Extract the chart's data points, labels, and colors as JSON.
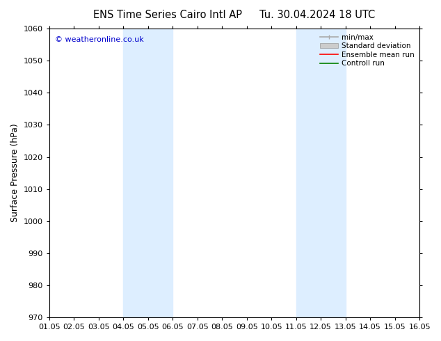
{
  "title_left": "ENS Time Series Cairo Intl AP",
  "title_right": "Tu. 30.04.2024 18 UTC",
  "ylabel": "Surface Pressure (hPa)",
  "xlabel": "",
  "ylim": [
    970,
    1060
  ],
  "yticks": [
    970,
    980,
    990,
    1000,
    1010,
    1020,
    1030,
    1040,
    1050,
    1060
  ],
  "xlim_start": 0,
  "xlim_end": 15,
  "xtick_labels": [
    "01.05",
    "02.05",
    "03.05",
    "04.05",
    "05.05",
    "06.05",
    "07.05",
    "08.05",
    "09.05",
    "10.05",
    "11.05",
    "12.05",
    "13.05",
    "14.05",
    "15.05",
    "16.05"
  ],
  "shaded_regions": [
    {
      "xmin": 3.0,
      "xmax": 5.0,
      "color": "#ddeeff"
    },
    {
      "xmin": 10.0,
      "xmax": 12.0,
      "color": "#ddeeff"
    }
  ],
  "watermark": "© weatheronline.co.uk",
  "watermark_color": "#0000cc",
  "legend_entries": [
    {
      "label": "min/max",
      "color": "#aaaaaa",
      "lw": 1.2,
      "style": "minmax"
    },
    {
      "label": "Standard deviation",
      "color": "#cccccc",
      "lw": 5,
      "style": "band"
    },
    {
      "label": "Ensemble mean run",
      "color": "red",
      "lw": 1.2,
      "style": "line"
    },
    {
      "label": "Controll run",
      "color": "green",
      "lw": 1.2,
      "style": "line"
    }
  ],
  "background_color": "#ffffff",
  "title_fontsize": 10.5,
  "axis_label_fontsize": 9,
  "tick_fontsize": 8,
  "watermark_fontsize": 8
}
